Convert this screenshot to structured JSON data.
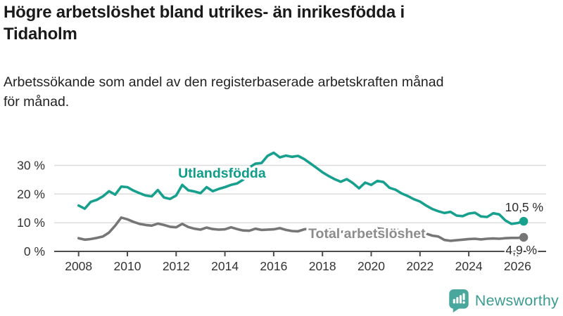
{
  "header": {
    "title": "Högre arbetslöshet bland utrikes- än inrikesfödda i\nTidaholm",
    "subtitle": "Arbetssökande som andel av den registerbaserade arbetskraften månad\nför månad."
  },
  "chart_data": {
    "type": "line",
    "title": "Högre arbetslöshet bland utrikes- än inrikesfödda i Tidaholm",
    "subtitle": "Arbetssökande som andel av den registerbaserade arbetskraften månad för månad.",
    "unit": "%",
    "x_start": 2008.0,
    "x_step": 0.25,
    "xlim": [
      2007.0,
      2026.9
    ],
    "ylim": [
      0,
      36
    ],
    "grid": true,
    "grid_color": "#dcdcdc",
    "axis_color": "#4d4d4d",
    "tick_label_color": "#333333",
    "x_ticks": [
      2008,
      2010,
      2012,
      2014,
      2016,
      2018,
      2020,
      2022,
      2024,
      2026
    ],
    "y_ticks": [
      {
        "value": 0,
        "label": "0 %"
      },
      {
        "value": 10,
        "label": "10 %"
      },
      {
        "value": 20,
        "label": "20 %"
      },
      {
        "value": 30,
        "label": "30 %"
      }
    ],
    "legend_position": "inline-labels",
    "series": [
      {
        "id": "total-arbetsloshet",
        "name": "Total arbetslöshet",
        "color": "#767676",
        "label_color": "#8c8c8c",
        "end_label": "4,9 %",
        "end_value": 4.9,
        "label_pos": {
          "x": 2017.42,
          "y": 4.65
        },
        "values": [
          4.6,
          4.1,
          4.3,
          4.7,
          5.2,
          6.6,
          9.0,
          11.8,
          11.2,
          10.3,
          9.6,
          9.2,
          9.0,
          9.7,
          9.2,
          8.6,
          8.4,
          9.6,
          8.5,
          7.9,
          7.6,
          8.3,
          7.8,
          7.6,
          7.7,
          8.4,
          7.8,
          7.3,
          7.2,
          7.9,
          7.5,
          7.6,
          7.7,
          8.1,
          7.5,
          7.1,
          7.0,
          7.7,
          7.9,
          7.5,
          7.2,
          7.7,
          7.1,
          6.8,
          6.9,
          7.2,
          6.7,
          6.6,
          7.0,
          8.0,
          7.8,
          7.5,
          7.6,
          7.3,
          6.6,
          6.2,
          6.0,
          6.2,
          5.5,
          5.2,
          4.0,
          3.7,
          3.9,
          4.1,
          4.3,
          4.4,
          4.2,
          4.4,
          4.5,
          4.4,
          4.6,
          4.7,
          4.7,
          4.9
        ]
      },
      {
        "id": "utlandsfodda",
        "name": "Utlandsfödda",
        "color": "#17a08d",
        "label_color": "#0f9c89",
        "end_label": "10,5 %",
        "end_value": 10.5,
        "label_pos": {
          "x": 2012.08,
          "y": 25.7
        },
        "values": [
          16.0,
          14.9,
          17.3,
          18.0,
          19.2,
          21.0,
          19.8,
          22.6,
          22.4,
          21.2,
          20.3,
          19.5,
          19.2,
          21.4,
          18.8,
          18.3,
          19.5,
          23.2,
          21.3,
          20.9,
          20.3,
          22.4,
          21.0,
          21.8,
          22.4,
          23.2,
          23.7,
          25.0,
          29.3,
          30.6,
          30.8,
          33.3,
          34.4,
          32.8,
          33.4,
          33.0,
          33.3,
          32.2,
          30.7,
          29.2,
          27.6,
          26.3,
          25.2,
          24.3,
          25.2,
          23.8,
          22.0,
          24.0,
          23.2,
          24.6,
          24.2,
          22.2,
          21.5,
          20.2,
          19.3,
          18.2,
          17.4,
          16.0,
          14.8,
          14.0,
          13.4,
          13.8,
          12.5,
          12.3,
          13.2,
          13.5,
          12.2,
          12.0,
          13.3,
          12.9,
          10.8,
          9.6,
          9.9,
          10.5
        ]
      }
    ],
    "end_value_label_color": "#2b2b2b"
  },
  "footer": {
    "brand": "Newsworthy",
    "logo_icon": "bar-chart-speech-bubble-icon",
    "brand_color": "#3d9c92",
    "icon_color": "#4aa79d"
  }
}
